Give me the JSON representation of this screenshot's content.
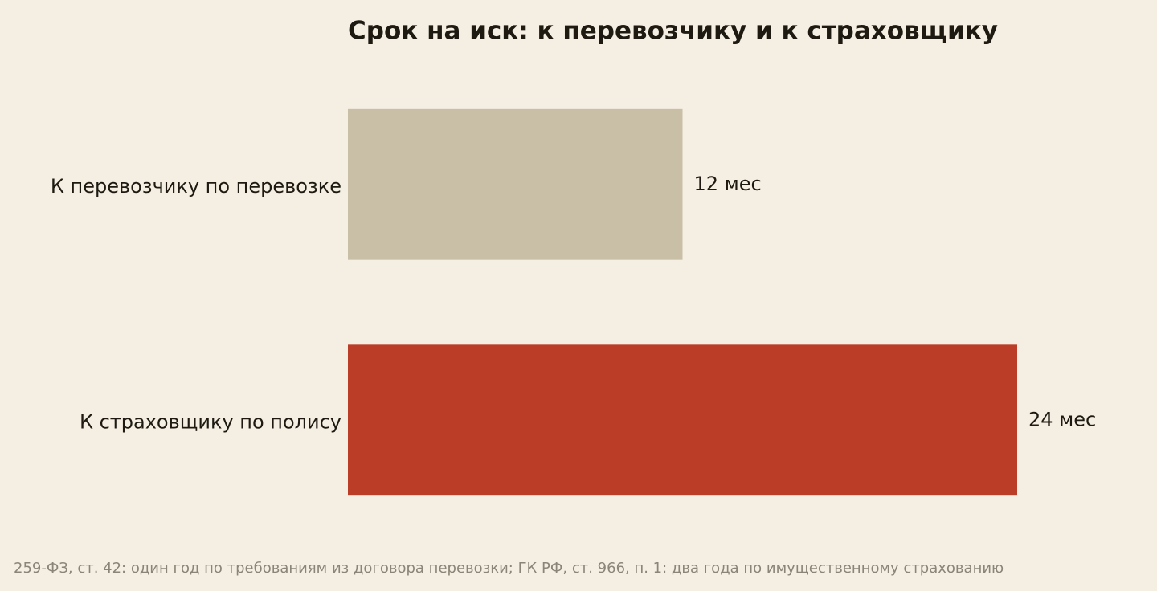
{
  "chart_data": {
    "type": "barh",
    "title": "Срок на иск: к перевозчику и к страховщику",
    "categories": [
      "К перевозчику по перевозке",
      "К страховщику по полису"
    ],
    "values": [
      12,
      24
    ],
    "value_labels": [
      "12 мес",
      "24 мес"
    ],
    "colors": [
      "#c9bfa7",
      "#bc3d27"
    ],
    "caption": "259-ФЗ, ст. 42: один год по требованиям из договора перевозки; ГК РФ, ст. 966, п. 1: два года по имущественному страхованию"
  }
}
